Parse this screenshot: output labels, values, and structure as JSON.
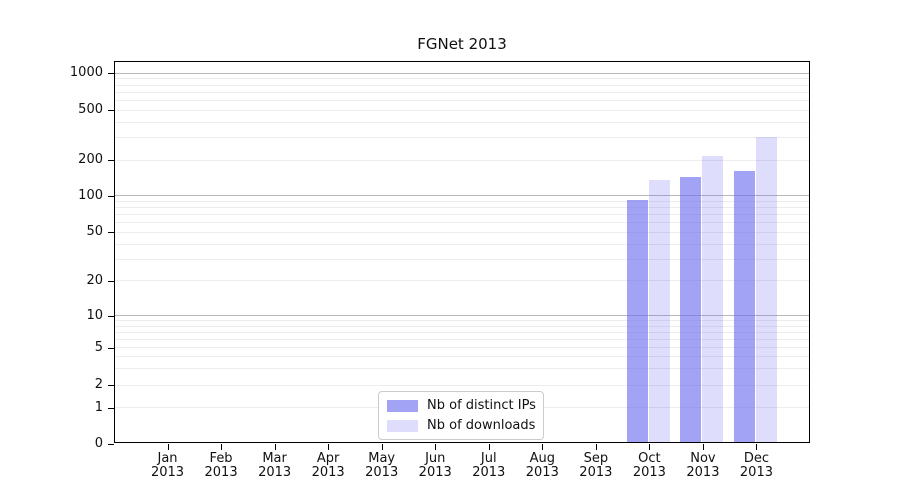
{
  "chart_data": {
    "type": "bar",
    "title": "FGNet 2013",
    "x_categories": [
      {
        "month": "Jan",
        "year": "2013"
      },
      {
        "month": "Feb",
        "year": "2013"
      },
      {
        "month": "Mar",
        "year": "2013"
      },
      {
        "month": "Apr",
        "year": "2013"
      },
      {
        "month": "May",
        "year": "2013"
      },
      {
        "month": "Jun",
        "year": "2013"
      },
      {
        "month": "Jul",
        "year": "2013"
      },
      {
        "month": "Aug",
        "year": "2013"
      },
      {
        "month": "Sep",
        "year": "2013"
      },
      {
        "month": "Oct",
        "year": "2013"
      },
      {
        "month": "Nov",
        "year": "2013"
      },
      {
        "month": "Dec",
        "year": "2013"
      }
    ],
    "series": [
      {
        "name": "Nb of distinct IPs",
        "color": "rgba(106,106,240,0.62)",
        "values": [
          0,
          0,
          0,
          0,
          0,
          0,
          0,
          0,
          0,
          93,
          145,
          161
        ]
      },
      {
        "name": "Nb of downloads",
        "color": "rgba(106,106,240,0.22)",
        "values": [
          0,
          0,
          0,
          0,
          0,
          0,
          0,
          0,
          0,
          136,
          217,
          304
        ]
      }
    ],
    "y_axis": {
      "scale": "symlog",
      "tick_values": [
        0,
        1,
        2,
        5,
        10,
        20,
        50,
        100,
        200,
        500,
        1000
      ],
      "tick_labels": [
        "0",
        "1",
        "2",
        "5",
        "10",
        "20",
        "50",
        "100",
        "200",
        "500",
        "1000"
      ]
    },
    "grid": {
      "enabled": true,
      "major_color": "#b8b8b8",
      "minor_color": "#ececec"
    },
    "legend": {
      "position": "bottom-center",
      "entries": [
        "Nb of distinct IPs",
        "Nb of downloads"
      ]
    },
    "xlabel": "",
    "ylabel": ""
  }
}
